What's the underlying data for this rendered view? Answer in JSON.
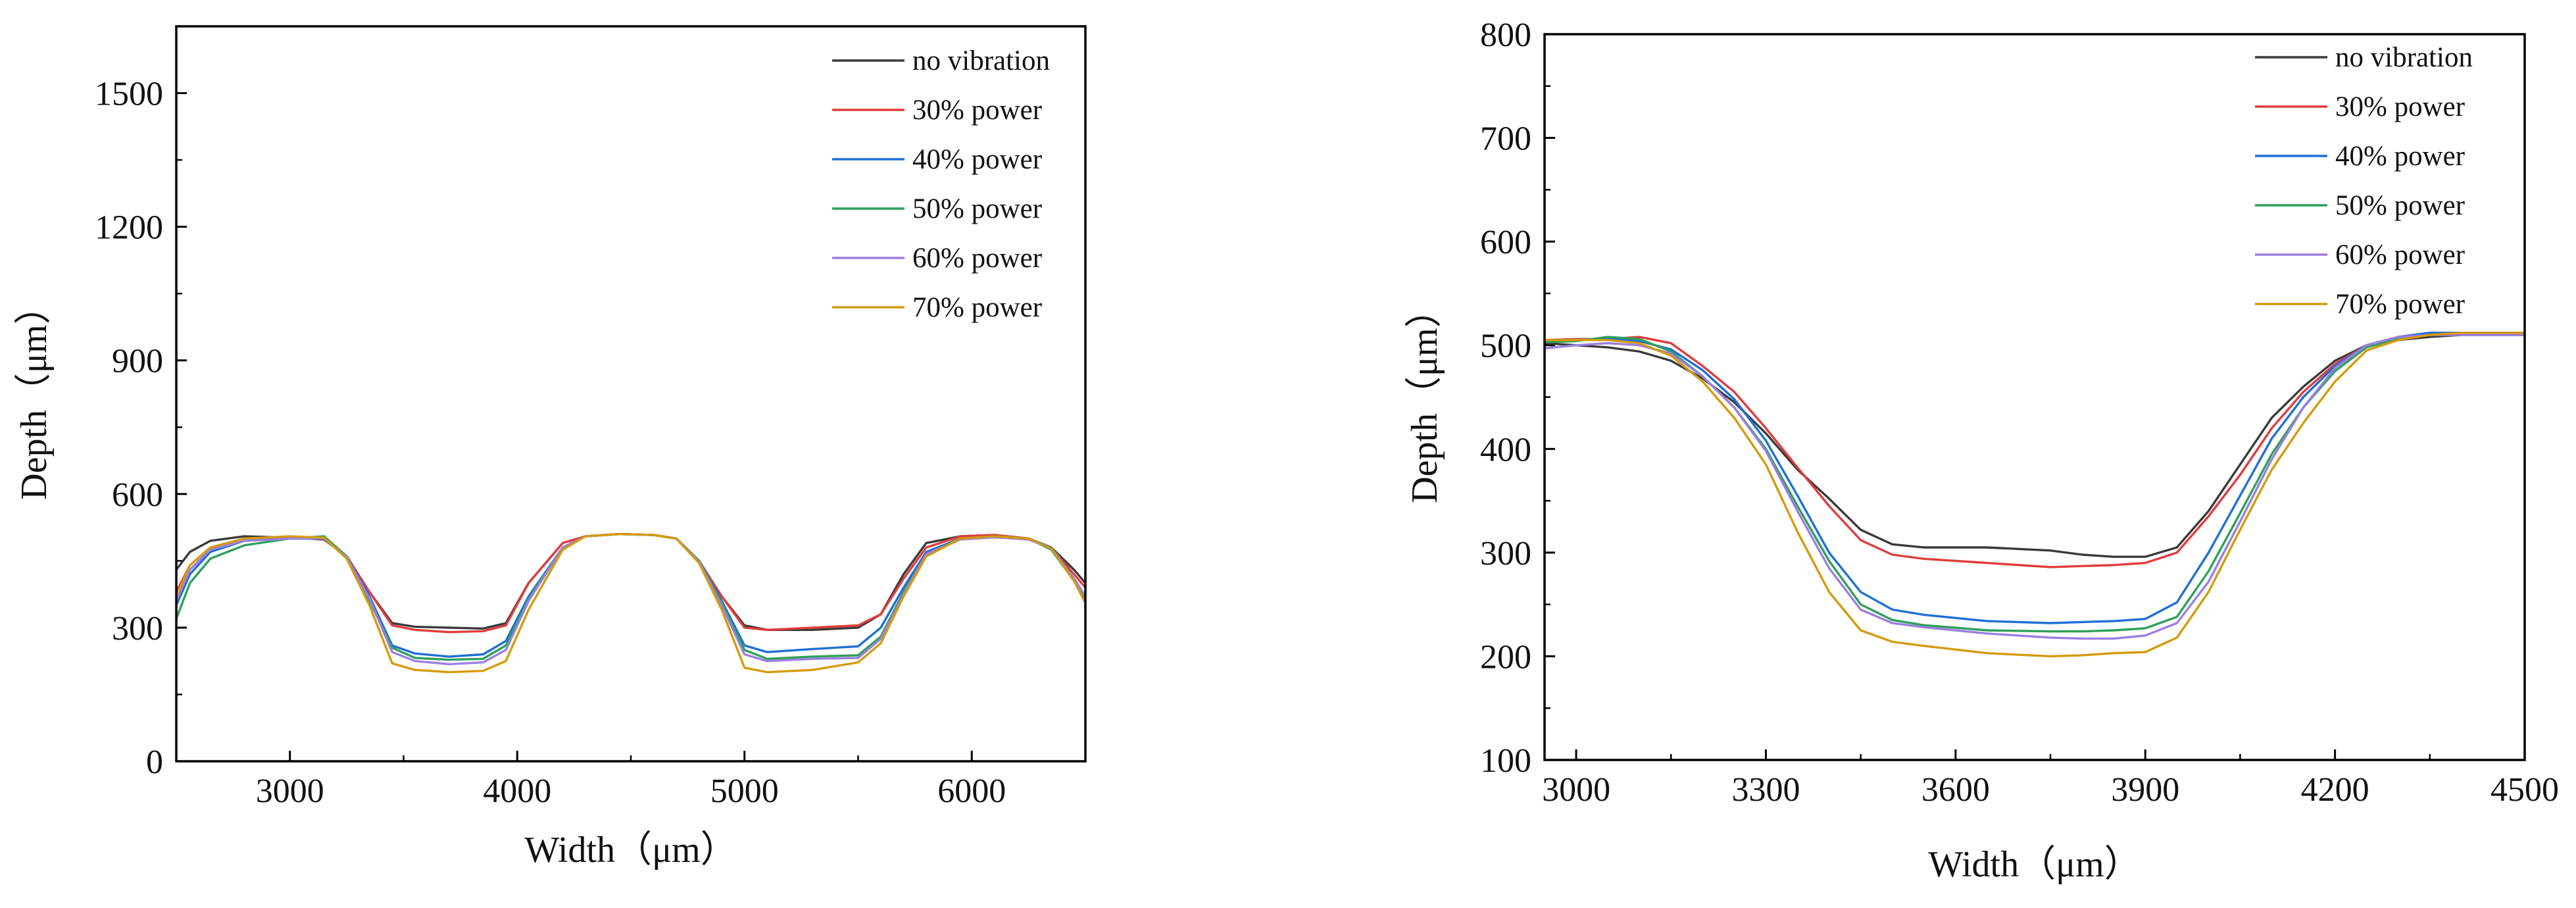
{
  "charts": [
    {
      "id": "left",
      "type": "line",
      "xlabel": "Width（μm）",
      "ylabel": "Depth（μm）",
      "xlim": [
        2500,
        6500
      ],
      "ylim": [
        0,
        1650
      ],
      "xticks": [
        3000,
        4000,
        5000,
        6000
      ],
      "yticks": [
        0,
        300,
        600,
        900,
        1200,
        1500
      ],
      "legend_position": "top-right",
      "series": [
        {
          "name": "no vibration",
          "color": "#3a3a3a",
          "x": [
            2500,
            2560,
            2650,
            2800,
            3000,
            3150,
            3250,
            3350,
            3450,
            3550,
            3700,
            3850,
            3950,
            4050,
            4200,
            4300,
            4450,
            4600,
            4700,
            4800,
            4900,
            5000,
            5100,
            5300,
            5500,
            5600,
            5700,
            5800,
            5950,
            6100,
            6250,
            6350,
            6450,
            6500
          ],
          "y": [
            430,
            470,
            495,
            505,
            502,
            498,
            460,
            380,
            310,
            302,
            300,
            298,
            310,
            400,
            490,
            505,
            510,
            508,
            500,
            450,
            370,
            305,
            295,
            295,
            300,
            330,
            420,
            490,
            505,
            508,
            500,
            480,
            430,
            400
          ]
        },
        {
          "name": "30% power",
          "color": "#e03c3c",
          "x": [
            2500,
            2560,
            2650,
            2800,
            3000,
            3150,
            3250,
            3350,
            3450,
            3550,
            3700,
            3850,
            3950,
            4050,
            4200,
            4300,
            4450,
            4600,
            4700,
            4800,
            4900,
            5000,
            5100,
            5300,
            5500,
            5600,
            5700,
            5800,
            5950,
            6100,
            6250,
            6350,
            6450,
            6500
          ],
          "y": [
            380,
            440,
            480,
            500,
            502,
            500,
            460,
            380,
            305,
            295,
            290,
            292,
            305,
            400,
            490,
            505,
            510,
            508,
            500,
            450,
            370,
            300,
            295,
            300,
            305,
            330,
            410,
            480,
            505,
            508,
            500,
            480,
            420,
            390
          ]
        },
        {
          "name": "40% power",
          "color": "#1f6fd6",
          "x": [
            2500,
            2560,
            2650,
            2800,
            3000,
            3150,
            3250,
            3350,
            3450,
            3550,
            3700,
            3850,
            3950,
            4050,
            4200,
            4300,
            4450,
            4600,
            4700,
            4800,
            4900,
            5000,
            5100,
            5300,
            5500,
            5600,
            5700,
            5800,
            5950,
            6100,
            6250,
            6350,
            6450,
            6500
          ],
          "y": [
            350,
            420,
            470,
            495,
            500,
            500,
            460,
            370,
            260,
            242,
            235,
            240,
            270,
            370,
            480,
            505,
            510,
            508,
            500,
            450,
            360,
            260,
            245,
            252,
            258,
            300,
            390,
            470,
            500,
            505,
            500,
            480,
            410,
            370
          ]
        },
        {
          "name": "50% power",
          "color": "#2ea05a",
          "x": [
            2500,
            2560,
            2650,
            2800,
            3000,
            3150,
            3250,
            3350,
            3450,
            3550,
            3700,
            3850,
            3950,
            4050,
            4200,
            4300,
            4450,
            4600,
            4700,
            4800,
            4900,
            5000,
            5100,
            5300,
            5500,
            5600,
            5700,
            5800,
            5950,
            6100,
            6250,
            6350,
            6450,
            6500
          ],
          "y": [
            320,
            400,
            455,
            485,
            500,
            505,
            460,
            360,
            255,
            232,
            228,
            230,
            260,
            365,
            480,
            505,
            510,
            508,
            500,
            450,
            355,
            250,
            230,
            235,
            238,
            280,
            380,
            465,
            500,
            505,
            500,
            475,
            405,
            365
          ]
        },
        {
          "name": "60% power",
          "color": "#9b7fe0",
          "x": [
            2500,
            2560,
            2650,
            2800,
            3000,
            3150,
            3250,
            3350,
            3450,
            3550,
            3700,
            3850,
            3950,
            4050,
            4200,
            4300,
            4450,
            4600,
            4700,
            4800,
            4900,
            5000,
            5100,
            5300,
            5500,
            5600,
            5700,
            5800,
            5950,
            6100,
            6250,
            6350,
            6450,
            6500
          ],
          "y": [
            360,
            430,
            475,
            495,
            500,
            500,
            458,
            365,
            245,
            225,
            218,
            222,
            250,
            360,
            480,
            505,
            510,
            508,
            500,
            448,
            350,
            240,
            225,
            230,
            232,
            275,
            375,
            465,
            498,
            503,
            498,
            478,
            410,
            370
          ]
        },
        {
          "name": "70% power",
          "color": "#d49b0c",
          "x": [
            2500,
            2560,
            2650,
            2800,
            3000,
            3150,
            3250,
            3350,
            3450,
            3550,
            3700,
            3850,
            3950,
            4050,
            4200,
            4300,
            4450,
            4600,
            4700,
            4800,
            4900,
            5000,
            5100,
            5300,
            5500,
            5600,
            5700,
            5800,
            5950,
            6100,
            6250,
            6350,
            6450,
            6500
          ],
          "y": [
            370,
            440,
            480,
            500,
            505,
            502,
            455,
            350,
            220,
            205,
            200,
            203,
            225,
            340,
            475,
            505,
            510,
            508,
            500,
            445,
            340,
            210,
            200,
            205,
            222,
            265,
            370,
            460,
            500,
            505,
            500,
            478,
            405,
            355
          ]
        }
      ]
    },
    {
      "id": "right",
      "type": "line",
      "xlabel": "Width（μm）",
      "ylabel": "Depth（μm）",
      "xlim": [
        2950,
        4500
      ],
      "ylim": [
        100,
        800
      ],
      "xticks": [
        3000,
        3300,
        3600,
        3900,
        4200,
        4500
      ],
      "yticks": [
        100,
        200,
        300,
        400,
        500,
        600,
        700,
        800
      ],
      "legend_position": "top-right",
      "series": [
        {
          "name": "no vibration",
          "color": "#3a3a3a",
          "x": [
            2950,
            3000,
            3050,
            3100,
            3150,
            3200,
            3250,
            3300,
            3350,
            3400,
            3450,
            3500,
            3550,
            3650,
            3750,
            3800,
            3850,
            3900,
            3950,
            4000,
            4050,
            4100,
            4150,
            4200,
            4250,
            4300,
            4350,
            4400,
            4450,
            4500
          ],
          "y": [
            502,
            500,
            498,
            494,
            485,
            468,
            445,
            415,
            380,
            352,
            322,
            308,
            305,
            305,
            302,
            298,
            296,
            296,
            305,
            340,
            385,
            430,
            460,
            485,
            500,
            505,
            508,
            510,
            510,
            510
          ]
        },
        {
          "name": "30% power",
          "color": "#e03c3c",
          "x": [
            2950,
            3000,
            3050,
            3100,
            3150,
            3200,
            3250,
            3300,
            3350,
            3400,
            3450,
            3500,
            3550,
            3650,
            3750,
            3800,
            3850,
            3900,
            3950,
            4000,
            4050,
            4100,
            4150,
            4200,
            4250,
            4300,
            4350,
            4400,
            4450,
            4500
          ],
          "y": [
            505,
            506,
            506,
            508,
            502,
            480,
            455,
            420,
            382,
            345,
            312,
            298,
            294,
            290,
            286,
            287,
            288,
            290,
            300,
            335,
            375,
            420,
            455,
            482,
            500,
            508,
            512,
            512,
            512,
            512
          ]
        },
        {
          "name": "40% power",
          "color": "#1f6fd6",
          "x": [
            2950,
            3000,
            3050,
            3100,
            3150,
            3200,
            3250,
            3300,
            3350,
            3400,
            3450,
            3500,
            3550,
            3650,
            3750,
            3800,
            3850,
            3900,
            3950,
            4000,
            4050,
            4100,
            4150,
            4200,
            4250,
            4300,
            4350,
            4400,
            4450,
            4500
          ],
          "y": [
            505,
            505,
            506,
            504,
            496,
            476,
            448,
            408,
            355,
            300,
            262,
            245,
            240,
            234,
            232,
            233,
            234,
            236,
            252,
            300,
            355,
            410,
            450,
            480,
            500,
            508,
            512,
            512,
            512,
            512
          ]
        },
        {
          "name": "50% power",
          "color": "#2ea05a",
          "x": [
            2950,
            3000,
            3050,
            3100,
            3150,
            3200,
            3250,
            3300,
            3350,
            3400,
            3450,
            3500,
            3550,
            3650,
            3750,
            3800,
            3850,
            3900,
            3950,
            4000,
            4050,
            4100,
            4150,
            4200,
            4250,
            4300,
            4350,
            4400,
            4450,
            4500
          ],
          "y": [
            503,
            504,
            508,
            506,
            494,
            470,
            440,
            400,
            345,
            292,
            250,
            235,
            230,
            225,
            224,
            224,
            225,
            227,
            238,
            282,
            338,
            395,
            440,
            475,
            498,
            506,
            510,
            511,
            511,
            511
          ]
        },
        {
          "name": "60% power",
          "color": "#9b7fe0",
          "x": [
            2950,
            3000,
            3050,
            3100,
            3150,
            3200,
            3250,
            3300,
            3350,
            3400,
            3450,
            3500,
            3550,
            3650,
            3750,
            3800,
            3850,
            3900,
            3950,
            4000,
            4050,
            4100,
            4150,
            4200,
            4250,
            4300,
            4350,
            4400,
            4450,
            4500
          ],
          "y": [
            497,
            500,
            502,
            500,
            492,
            470,
            440,
            398,
            340,
            285,
            245,
            232,
            228,
            222,
            218,
            217,
            217,
            220,
            232,
            272,
            330,
            390,
            440,
            478,
            500,
            508,
            510,
            510,
            510,
            510
          ]
        },
        {
          "name": "70% power",
          "color": "#d49b0c",
          "x": [
            2950,
            3000,
            3050,
            3100,
            3150,
            3200,
            3250,
            3300,
            3350,
            3400,
            3450,
            3500,
            3550,
            3650,
            3750,
            3800,
            3850,
            3900,
            3950,
            4000,
            4050,
            4100,
            4150,
            4200,
            4250,
            4300,
            4350,
            4400,
            4450,
            4500
          ],
          "y": [
            505,
            505,
            505,
            502,
            490,
            465,
            430,
            385,
            320,
            262,
            225,
            214,
            210,
            203,
            200,
            201,
            203,
            204,
            218,
            262,
            322,
            380,
            425,
            465,
            495,
            505,
            510,
            512,
            512,
            512
          ]
        }
      ]
    }
  ]
}
